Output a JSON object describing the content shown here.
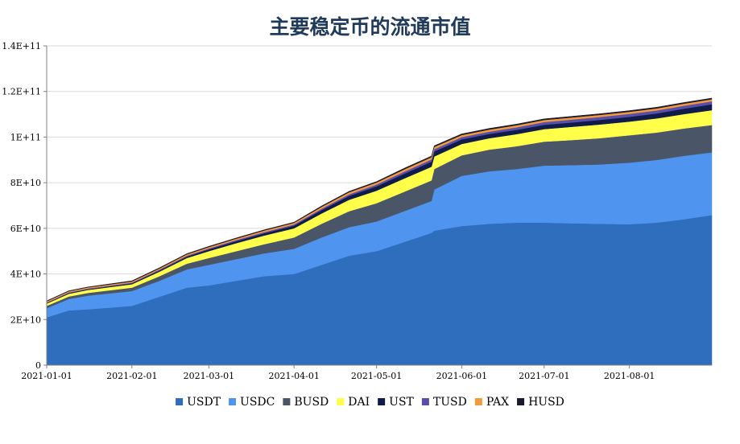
{
  "chart_data": {
    "type": "area",
    "stacked": true,
    "title": "主要稳定币的流通市值",
    "xlabel": "",
    "ylabel": "",
    "ylim": [
      0,
      140000000000
    ],
    "y_ticks": [
      0,
      20000000000,
      40000000000,
      60000000000,
      80000000000,
      100000000000,
      120000000000,
      140000000000
    ],
    "y_tick_labels": [
      "0",
      "2E+10",
      "4E+10",
      "6E+10",
      "8E+10",
      "1E+11",
      "1.2E+11",
      "1.4E+11"
    ],
    "x_tick_labels": [
      "2021-01-01",
      "2021-02-01",
      "2021-03-01",
      "2021-04-01",
      "2021-05-01",
      "2021-06-01",
      "2021-07-01",
      "2021-08-01"
    ],
    "x_tick_days": [
      0,
      31,
      59,
      90,
      120,
      151,
      181,
      212
    ],
    "x_range_days": [
      0,
      242
    ],
    "legend_position": "bottom",
    "x": [
      "2021-01-01",
      "2021-01-09",
      "2021-01-16",
      "2021-02-01",
      "2021-02-11",
      "2021-02-21",
      "2021-03-01",
      "2021-03-11",
      "2021-03-21",
      "2021-04-01",
      "2021-04-11",
      "2021-04-21",
      "2021-05-01",
      "2021-05-11",
      "2021-05-21",
      "2021-05-22",
      "2021-06-01",
      "2021-06-11",
      "2021-06-21",
      "2021-07-01",
      "2021-07-11",
      "2021-07-21",
      "2021-08-01",
      "2021-08-11",
      "2021-08-21",
      "2021-08-31"
    ],
    "series": [
      {
        "name": "USDT",
        "color": "#2f6ebd",
        "values": [
          21000000000,
          24000000000,
          24500000000,
          26000000000,
          30000000000,
          34000000000,
          35000000000,
          37000000000,
          39000000000,
          40000000000,
          44000000000,
          48000000000,
          50000000000,
          54000000000,
          58000000000,
          59000000000,
          61000000000,
          62000000000,
          62500000000,
          62500000000,
          62200000000,
          62000000000,
          61800000000,
          62500000000,
          64000000000,
          65800000000
        ]
      },
      {
        "name": "USDC",
        "color": "#4f95ef",
        "values": [
          4000000000,
          5000000000,
          6000000000,
          6500000000,
          7000000000,
          8000000000,
          9000000000,
          9500000000,
          10000000000,
          11000000000,
          12000000000,
          12500000000,
          13000000000,
          13500000000,
          14000000000,
          18000000000,
          22000000000,
          23000000000,
          23500000000,
          25000000000,
          25500000000,
          26000000000,
          27000000000,
          27500000000,
          27800000000,
          27500000000
        ]
      },
      {
        "name": "BUSD",
        "color": "#4a5568",
        "values": [
          1000000000,
          1100000000,
          1200000000,
          1500000000,
          2000000000,
          2500000000,
          3000000000,
          3500000000,
          4000000000,
          5000000000,
          6000000000,
          7000000000,
          8000000000,
          8500000000,
          9000000000,
          9000000000,
          9000000000,
          9500000000,
          10000000000,
          10500000000,
          11000000000,
          11500000000,
          12000000000,
          12000000000,
          12000000000,
          12000000000
        ]
      },
      {
        "name": "DAI",
        "color": "#ffff4a",
        "values": [
          1000000000,
          1200000000,
          1300000000,
          1500000000,
          2000000000,
          2500000000,
          3000000000,
          3500000000,
          3800000000,
          4000000000,
          4500000000,
          5000000000,
          5500000000,
          5800000000,
          6000000000,
          5500000000,
          5000000000,
          5000000000,
          5300000000,
          5500000000,
          5800000000,
          6000000000,
          6000000000,
          6200000000,
          6300000000,
          6500000000
        ]
      },
      {
        "name": "UST",
        "color": "#0f1b4a",
        "values": [
          200000000,
          300000000,
          300000000,
          400000000,
          500000000,
          600000000,
          800000000,
          900000000,
          1000000000,
          1200000000,
          1500000000,
          1700000000,
          1900000000,
          2100000000,
          2200000000,
          2200000000,
          2000000000,
          1900000000,
          1900000000,
          1900000000,
          1900000000,
          2000000000,
          2100000000,
          2200000000,
          2400000000,
          2600000000
        ]
      },
      {
        "name": "TUSD",
        "color": "#5a4fa8",
        "values": [
          300000000,
          300000000,
          300000000,
          300000000,
          400000000,
          400000000,
          400000000,
          500000000,
          500000000,
          500000000,
          600000000,
          700000000,
          800000000,
          900000000,
          1000000000,
          1000000000,
          1000000000,
          1000000000,
          1100000000,
          1200000000,
          1300000000,
          1300000000,
          1300000000,
          1300000000,
          1300000000,
          1300000000
        ]
      },
      {
        "name": "PAX",
        "color": "#f39a3c",
        "values": [
          500000000,
          500000000,
          500000000,
          500000000,
          500000000,
          600000000,
          600000000,
          600000000,
          700000000,
          700000000,
          800000000,
          900000000,
          900000000,
          1000000000,
          1000000000,
          1000000000,
          900000000,
          900000000,
          900000000,
          900000000,
          900000000,
          900000000,
          900000000,
          900000000,
          900000000,
          900000000
        ]
      },
      {
        "name": "HUSD",
        "color": "#1a1a2e",
        "values": [
          200000000,
          200000000,
          200000000,
          300000000,
          300000000,
          300000000,
          300000000,
          300000000,
          300000000,
          300000000,
          400000000,
          400000000,
          400000000,
          500000000,
          500000000,
          500000000,
          500000000,
          500000000,
          500000000,
          500000000,
          500000000,
          500000000,
          500000000,
          500000000,
          500000000,
          500000000
        ]
      }
    ]
  }
}
